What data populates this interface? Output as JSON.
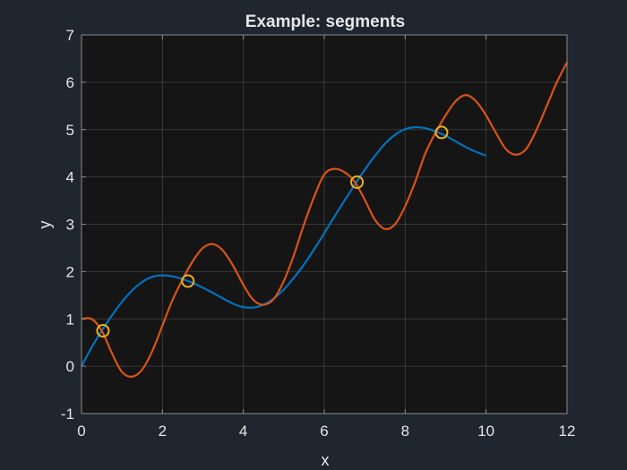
{
  "chart_data": {
    "type": "line",
    "title": "Example: segments",
    "xlabel": "x",
    "ylabel": "y",
    "xlim": [
      0,
      12
    ],
    "ylim": [
      -1,
      7
    ],
    "xticks": [
      0,
      2,
      4,
      6,
      8,
      10,
      12
    ],
    "yticks": [
      -1,
      0,
      1,
      2,
      3,
      4,
      5,
      6,
      7
    ],
    "grid": true,
    "background": "#151515",
    "figure_background": "#1f2630",
    "series": [
      {
        "color": "#0072bd",
        "x": [
          0,
          0.25,
          0.5,
          0.75,
          1.0,
          1.25,
          1.5,
          1.75,
          2.0,
          2.25,
          2.5,
          2.75,
          3.0,
          3.25,
          3.5,
          3.75,
          4.0,
          4.25,
          4.5,
          4.75,
          5.0,
          5.25,
          5.5,
          5.75,
          6.0,
          6.25,
          6.5,
          6.75,
          7.0,
          7.25,
          7.5,
          7.75,
          8.0,
          8.25,
          8.5,
          8.75,
          9.0,
          9.25,
          9.5,
          9.75,
          10.0
        ],
        "y": [
          0.0,
          0.4,
          0.75,
          1.07,
          1.36,
          1.6,
          1.78,
          1.89,
          1.92,
          1.9,
          1.84,
          1.76,
          1.66,
          1.55,
          1.43,
          1.32,
          1.25,
          1.24,
          1.3,
          1.43,
          1.62,
          1.87,
          2.15,
          2.47,
          2.81,
          3.16,
          3.5,
          3.83,
          4.15,
          4.44,
          4.7,
          4.89,
          5.01,
          5.05,
          5.03,
          4.96,
          4.87,
          4.75,
          4.63,
          4.53,
          4.45
        ]
      },
      {
        "color": "#d95319",
        "x": [
          0,
          0.25,
          0.5,
          0.75,
          1.0,
          1.25,
          1.5,
          1.75,
          2.0,
          2.25,
          2.5,
          2.75,
          3.0,
          3.25,
          3.5,
          3.75,
          4.0,
          4.25,
          4.5,
          4.75,
          5.0,
          5.25,
          5.5,
          5.75,
          6.0,
          6.25,
          6.5,
          6.75,
          7.0,
          7.25,
          7.5,
          7.75,
          8.0,
          8.25,
          8.5,
          8.75,
          9.0,
          9.25,
          9.5,
          9.75,
          10.0,
          10.25,
          10.5,
          10.75,
          11.0,
          11.25,
          11.5,
          11.75,
          12.0
        ],
        "y": [
          1.0,
          1.0,
          0.75,
          0.28,
          -0.12,
          -0.22,
          -0.07,
          0.32,
          0.86,
          1.4,
          1.84,
          2.22,
          2.5,
          2.58,
          2.44,
          2.12,
          1.72,
          1.4,
          1.3,
          1.42,
          1.8,
          2.35,
          3.0,
          3.58,
          4.05,
          4.17,
          4.1,
          3.9,
          3.52,
          3.1,
          2.9,
          3.0,
          3.38,
          3.9,
          4.5,
          4.93,
          5.3,
          5.6,
          5.73,
          5.6,
          5.3,
          4.92,
          4.58,
          4.47,
          4.6,
          5.0,
          5.5,
          6.0,
          6.42
        ]
      }
    ],
    "markers": {
      "edge_color": "#edb120",
      "points": [
        {
          "x": 0.53,
          "y": 0.75
        },
        {
          "x": 2.63,
          "y": 1.8
        },
        {
          "x": 6.81,
          "y": 3.89
        },
        {
          "x": 8.9,
          "y": 4.94
        }
      ]
    }
  }
}
